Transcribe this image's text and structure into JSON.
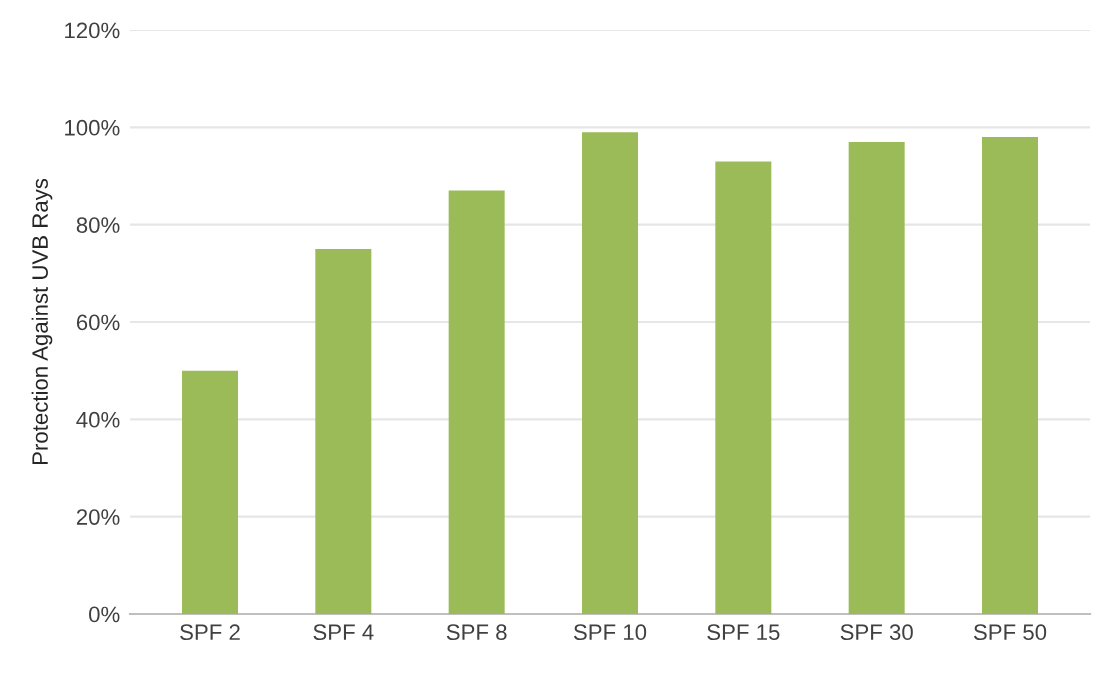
{
  "chart_data": {
    "type": "bar",
    "ylabel": "Protection Against UVB Rays",
    "categories": [
      "SPF 2",
      "SPF 4",
      "SPF 8",
      "SPF 10",
      "SPF 15",
      "SPF 30",
      "SPF 50"
    ],
    "values": [
      50,
      75,
      87,
      99,
      93,
      97,
      98
    ],
    "color": "#9bbb59",
    "ylim": [
      0,
      120
    ],
    "yticks": [
      {
        "value": 0,
        "label": "0%"
      },
      {
        "value": 20,
        "label": "20%"
      },
      {
        "value": 40,
        "label": "40%"
      },
      {
        "value": 60,
        "label": "60%"
      },
      {
        "value": 80,
        "label": "80%"
      },
      {
        "value": 100,
        "label": "100%"
      },
      {
        "value": 120,
        "label": "120%"
      }
    ],
    "grid": "y",
    "legend": false
  }
}
